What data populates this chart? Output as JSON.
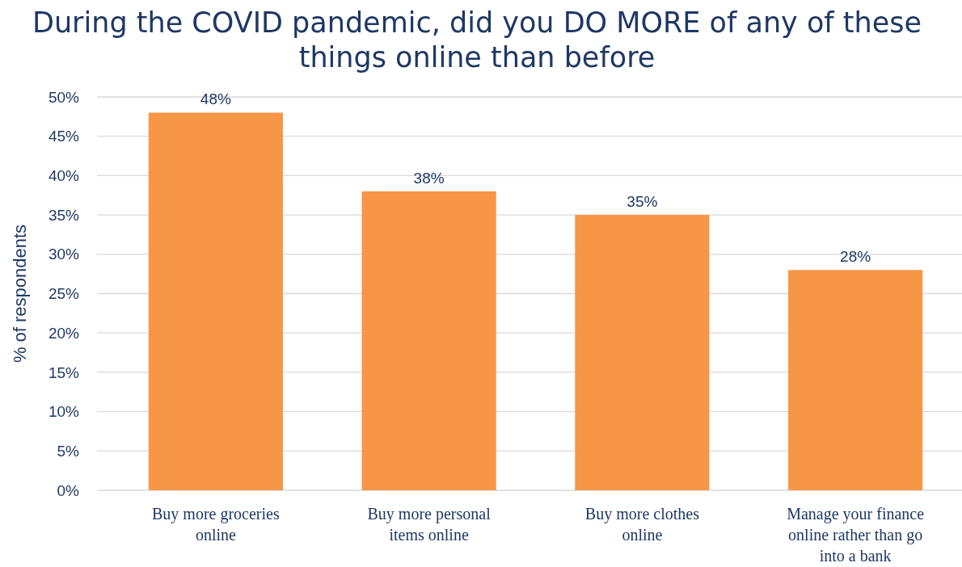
{
  "chart_data": {
    "type": "bar",
    "title": "During the COVID pandemic, did you DO MORE of any of these things online than before",
    "ylabel": "% of respondents",
    "categories": [
      "Buy more groceries online",
      "Buy more personal items online",
      "Buy more clothes online",
      "Manage your finance online rather than go into a bank"
    ],
    "values": [
      48,
      38,
      35,
      28
    ],
    "value_labels": [
      "48%",
      "38%",
      "35%",
      "28%"
    ],
    "color": "#f79646",
    "ylim": [
      0,
      50
    ],
    "yticks": [
      {
        "value": 0,
        "label": "0%"
      },
      {
        "value": 5,
        "label": "5%"
      },
      {
        "value": 10,
        "label": "10%"
      },
      {
        "value": 15,
        "label": "15%"
      },
      {
        "value": 20,
        "label": "20%"
      },
      {
        "value": 25,
        "label": "25%"
      },
      {
        "value": 30,
        "label": "30%"
      },
      {
        "value": 35,
        "label": "35%"
      },
      {
        "value": 40,
        "label": "40%"
      },
      {
        "value": 45,
        "label": "45%"
      },
      {
        "value": 50,
        "label": "50%"
      }
    ],
    "grid": "y"
  }
}
